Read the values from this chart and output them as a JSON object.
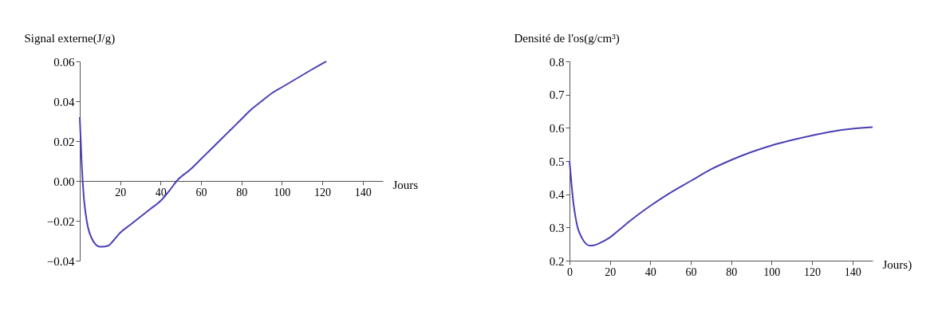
{
  "chart_data": [
    {
      "type": "line",
      "xlabel": "Jours",
      "ylabel": "Signal externe(J/g)",
      "color": "#4a40b5",
      "xlim": [
        0,
        150
      ],
      "ylim": [
        -0.04,
        0.06
      ],
      "xticks": [
        20,
        40,
        60,
        80,
        100,
        120,
        140
      ],
      "yticks": [
        -0.04,
        -0.02,
        {
          "value": 0,
          "label": "0.00"
        },
        0.02,
        0.04,
        0.06
      ],
      "x": [
        0,
        0.5,
        1,
        2,
        3,
        4,
        6,
        8,
        10,
        11,
        14,
        17,
        20,
        25,
        30,
        35,
        40,
        45,
        48,
        55,
        60,
        65,
        70,
        75,
        80,
        85,
        90,
        95,
        100,
        105,
        110,
        115,
        122
      ],
      "values": [
        0.032,
        0.02,
        0.008,
        -0.008,
        -0.017,
        -0.023,
        -0.029,
        -0.032,
        -0.033,
        -0.033,
        -0.0325,
        -0.0295,
        -0.026,
        -0.022,
        -0.018,
        -0.014,
        -0.01,
        -0.004,
        0.0,
        0.006,
        0.011,
        0.016,
        0.021,
        0.026,
        0.031,
        0.036,
        0.04,
        0.044,
        0.047,
        0.05,
        0.053,
        0.056,
        0.06
      ]
    },
    {
      "type": "line",
      "xlabel": "Jours)",
      "ylabel": "Densité de l'os(g/cm³)",
      "color": "#4a40b5",
      "xlim": [
        0,
        150
      ],
      "ylim": [
        0.2,
        0.8
      ],
      "xticks": [
        0,
        20,
        40,
        60,
        80,
        100,
        120,
        140
      ],
      "yticks": [
        0.2,
        0.3,
        0.4,
        0.5,
        0.6,
        0.7,
        0.8
      ],
      "x": [
        0,
        1,
        2,
        3,
        4,
        6,
        8,
        10,
        12,
        15,
        20,
        25,
        30,
        40,
        50,
        60,
        70,
        80,
        90,
        100,
        110,
        120,
        130,
        140,
        150
      ],
      "values": [
        0.5,
        0.43,
        0.37,
        0.33,
        0.3,
        0.27,
        0.252,
        0.245,
        0.246,
        0.253,
        0.27,
        0.295,
        0.32,
        0.365,
        0.405,
        0.44,
        0.475,
        0.503,
        0.527,
        0.547,
        0.563,
        0.577,
        0.589,
        0.597,
        0.602
      ]
    }
  ]
}
